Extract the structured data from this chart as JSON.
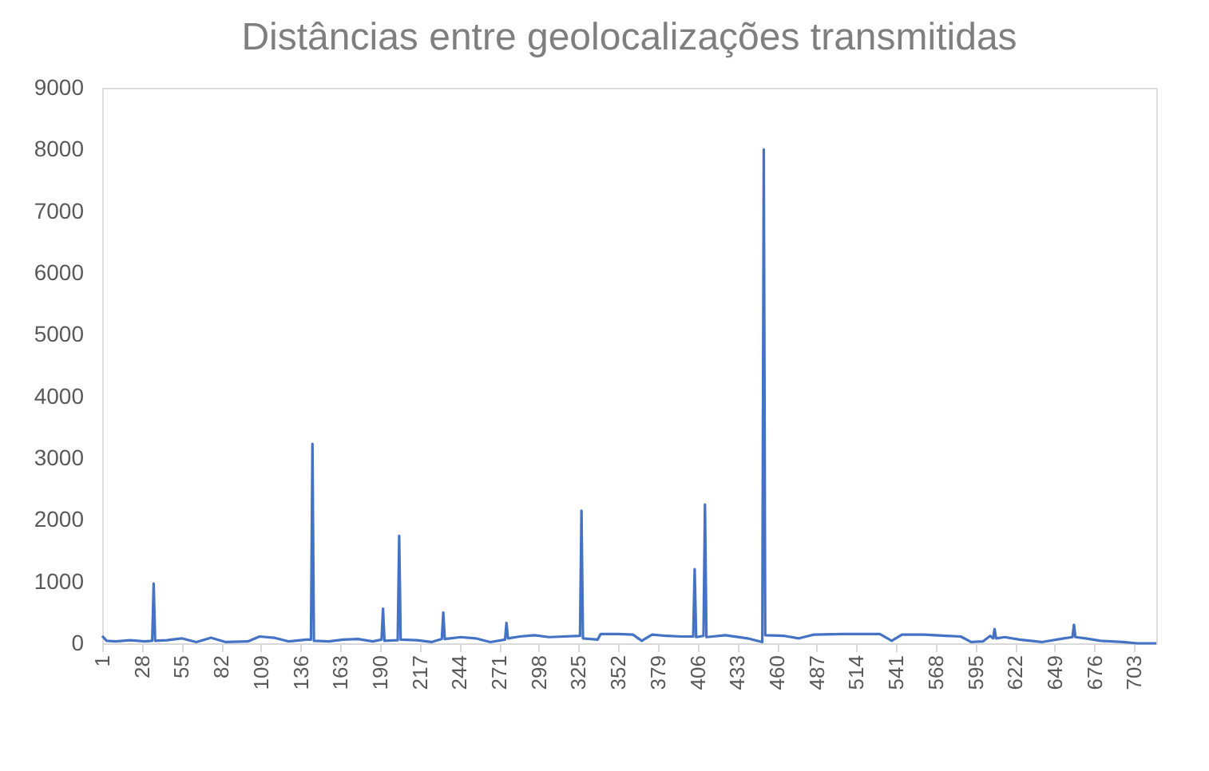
{
  "chart_data": {
    "type": "line",
    "title": "Distâncias entre geolocalizações transmitidas",
    "x": [
      1,
      4,
      10,
      20,
      30,
      35,
      36,
      37,
      45,
      55,
      65,
      75,
      85,
      100,
      108,
      118,
      128,
      140,
      143,
      144,
      145,
      155,
      165,
      175,
      185,
      191,
      192,
      193,
      202,
      203,
      204,
      215,
      225,
      232,
      233,
      234,
      245,
      255,
      265,
      275,
      276,
      277,
      285,
      295,
      305,
      315,
      326,
      327,
      328,
      338,
      340,
      352,
      362,
      368,
      375,
      385,
      395,
      403,
      404,
      405,
      410,
      411,
      412,
      425,
      440,
      450,
      451,
      452,
      465,
      475,
      485,
      505,
      530,
      538,
      545,
      560,
      575,
      585,
      592,
      600,
      605,
      607,
      608,
      609,
      615,
      625,
      640,
      655,
      661,
      662,
      663,
      670,
      680,
      695,
      705,
      718
    ],
    "series": [
      {
        "color": "#4472c4",
        "values": [
          120,
          40,
          30,
          50,
          30,
          40,
          970,
          40,
          50,
          80,
          20,
          90,
          20,
          30,
          110,
          90,
          30,
          60,
          60,
          3230,
          40,
          30,
          60,
          70,
          30,
          60,
          560,
          40,
          50,
          1740,
          60,
          50,
          20,
          70,
          500,
          70,
          100,
          80,
          20,
          60,
          330,
          80,
          110,
          130,
          100,
          110,
          120,
          2150,
          80,
          60,
          150,
          150,
          140,
          40,
          140,
          120,
          110,
          110,
          1200,
          100,
          120,
          2250,
          100,
          130,
          80,
          20,
          8000,
          130,
          120,
          80,
          140,
          150,
          150,
          40,
          140,
          140,
          120,
          110,
          20,
          30,
          120,
          80,
          230,
          80,
          100,
          60,
          20,
          80,
          100,
          300,
          100,
          80,
          40,
          20,
          0,
          0
        ]
      }
    ],
    "xlim": [
      1,
      718
    ],
    "xticks": [
      1,
      28,
      55,
      82,
      109,
      136,
      163,
      190,
      217,
      244,
      271,
      298,
      325,
      352,
      379,
      406,
      433,
      460,
      487,
      514,
      541,
      568,
      595,
      622,
      649,
      676,
      703
    ],
    "ylim": [
      0,
      9000
    ],
    "yticks": [
      0,
      1000,
      2000,
      3000,
      4000,
      5000,
      6000,
      7000,
      8000,
      9000
    ],
    "grid": false,
    "legend": false,
    "marker": "none",
    "line_style": "solid"
  }
}
